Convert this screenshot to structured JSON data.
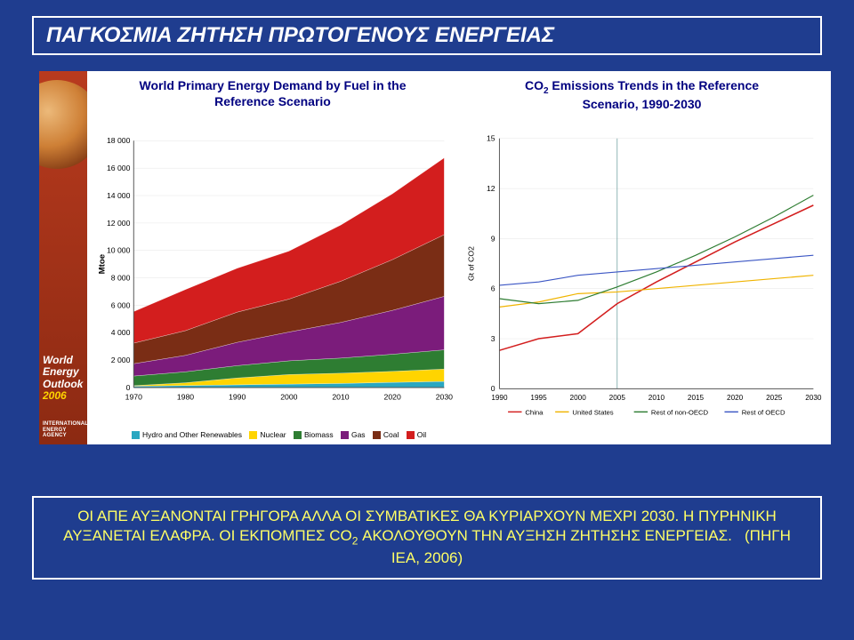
{
  "page_title": "ΠΑΓΚΟΣΜΙΑ ΖΗΤΗΣΗ ΠΡΩΤΟΓΕΝΟΥΣ ΕΝΕΡΓΕΙΑΣ",
  "sidebar": {
    "brand_l1": "World",
    "brand_l2": "Energy",
    "brand_l3": "Outlook",
    "brand_year": "2006",
    "agency_l1": "INTERNATIONAL",
    "agency_l2": "ENERGY AGENCY"
  },
  "chart_left": {
    "type": "area-stacked",
    "title_html": "World Primary Energy Demand by Fuel in the<br>Reference Scenario",
    "ylabel": "Mtoe",
    "ylim": [
      0,
      18000
    ],
    "ytick_step": 2000,
    "x_years": [
      1970,
      1980,
      1990,
      2000,
      2010,
      2020,
      2030
    ],
    "series_order": [
      "Hydro and Other Renewables",
      "Nuclear",
      "Biomass",
      "Gas",
      "Coal",
      "Oil"
    ],
    "series_colors": {
      "Hydro and Other Renewables": "#2aa7c1",
      "Nuclear": "#ffd400",
      "Biomass": "#2e7d32",
      "Gas": "#7b1c7b",
      "Coal": "#7a2d15",
      "Oil": "#d31e1e"
    },
    "data": {
      "Hydro and Other Renewables": [
        100,
        150,
        200,
        250,
        300,
        380,
        450
      ],
      "Nuclear": [
        40,
        200,
        500,
        700,
        750,
        800,
        900
      ],
      "Biomass": [
        700,
        800,
        900,
        1000,
        1100,
        1250,
        1400
      ],
      "Gas": [
        900,
        1200,
        1700,
        2100,
        2600,
        3200,
        3900
      ],
      "Coal": [
        1500,
        1800,
        2200,
        2400,
        3000,
        3700,
        4500
      ],
      "Oil": [
        2300,
        3000,
        3200,
        3500,
        4100,
        4800,
        5600
      ]
    }
  },
  "chart_right": {
    "type": "line",
    "title_html": "CO<sub>2</sub> Emissions Trends in the Reference<br>Scenario, 1990-2030",
    "ylabel": "Gt of CO2",
    "ylim": [
      0,
      15
    ],
    "ytick_step": 3,
    "x_years": [
      1990,
      1995,
      2000,
      2005,
      2010,
      2015,
      2020,
      2025,
      2030
    ],
    "guide_year": 2005,
    "series": [
      {
        "name": "China",
        "color": "#d31e1e",
        "width": 1.6,
        "values": [
          2.3,
          3.0,
          3.3,
          5.1,
          6.4,
          7.6,
          8.8,
          9.9,
          11.0
        ]
      },
      {
        "name": "United States",
        "color": "#f0b400",
        "width": 1.2,
        "values": [
          4.9,
          5.2,
          5.7,
          5.8,
          6.0,
          6.2,
          6.4,
          6.6,
          6.8
        ]
      },
      {
        "name": "Rest of non-OECD",
        "color": "#2e7d32",
        "width": 1.2,
        "values": [
          5.4,
          5.1,
          5.3,
          6.1,
          7.0,
          8.0,
          9.1,
          10.3,
          11.6
        ]
      },
      {
        "name": "Rest of OECD",
        "color": "#3b56c4",
        "width": 1.2,
        "values": [
          6.2,
          6.4,
          6.8,
          7.0,
          7.2,
          7.4,
          7.6,
          7.8,
          8.0
        ]
      }
    ]
  },
  "footer_html": "ΟΙ ΑΠΕ ΑΥΞΑΝΟΝΤΑΙ ΓΡΗΓΟΡΑ ΑΛΛΑ ΟΙ ΣΥΜΒΑΤΙΚΕΣ ΘΑ ΚΥΡΙΑΡΧΟΥΝ ΜΕΧΡΙ 2030. Η ΠΥΡΗΝΙΚΗ ΑΥΞΑΝΕΤΑΙ ΕΛΑΦΡΑ. ΟΙ ΕΚΠΟΜΠΕΣ CO<sub>2</sub> ΑΚΟΛΟΥΘΟΥΝ ΤΗΝ ΑΥΞΗΣΗ ΖΗΤΗΣΗΣ ΕΝΕΡΓΕΙΑΣ.&nbsp;&nbsp;&nbsp;(ΠΗΓΗ ΙΕΑ, 2006)"
}
